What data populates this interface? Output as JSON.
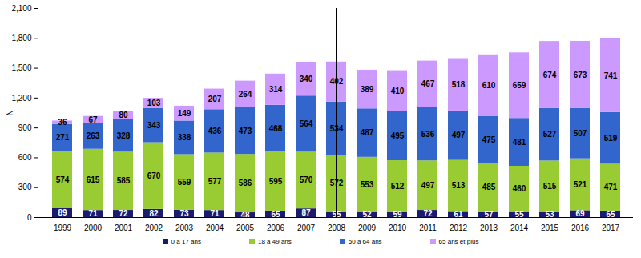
{
  "chart_data": {
    "type": "bar",
    "stacked": true,
    "data_labels": true,
    "grid": false,
    "legend": "bottom",
    "ylabel": "N",
    "categories": [
      "1999",
      "2000",
      "2001",
      "2002",
      "2003",
      "2004",
      "2005",
      "2006",
      "2007",
      "2008",
      "2009",
      "2010",
      "2011",
      "2012",
      "2013",
      "2014",
      "2015",
      "2016",
      "2017"
    ],
    "series": [
      {
        "name": "0 à 17 ans",
        "color": "#1a1a6e",
        "values": [
          89,
          71,
          72,
          82,
          73,
          71,
          48,
          65,
          87,
          55,
          52,
          59,
          72,
          61,
          57,
          55,
          53,
          69,
          65
        ]
      },
      {
        "name": "18 à 49 ans",
        "color": "#99cc33",
        "values": [
          574,
          615,
          585,
          670,
          559,
          577,
          586,
          595,
          570,
          572,
          553,
          512,
          497,
          513,
          485,
          460,
          515,
          521,
          471
        ]
      },
      {
        "name": "50 à 64 ans",
        "color": "#3366cc",
        "values": [
          271,
          263,
          328,
          343,
          338,
          436,
          473,
          468,
          564,
          534,
          487,
          495,
          536,
          497,
          475,
          481,
          527,
          507,
          519
        ]
      },
      {
        "name": "65 ans et plus",
        "color": "#cc99ff",
        "values": [
          36,
          67,
          80,
          103,
          149,
          207,
          264,
          314,
          340,
          402,
          389,
          410,
          467,
          518,
          610,
          659,
          674,
          673,
          741
        ]
      }
    ],
    "ylim": [
      0,
      2100
    ],
    "yticks": [
      0,
      300,
      600,
      900,
      1200,
      1500,
      1800,
      2100
    ]
  }
}
